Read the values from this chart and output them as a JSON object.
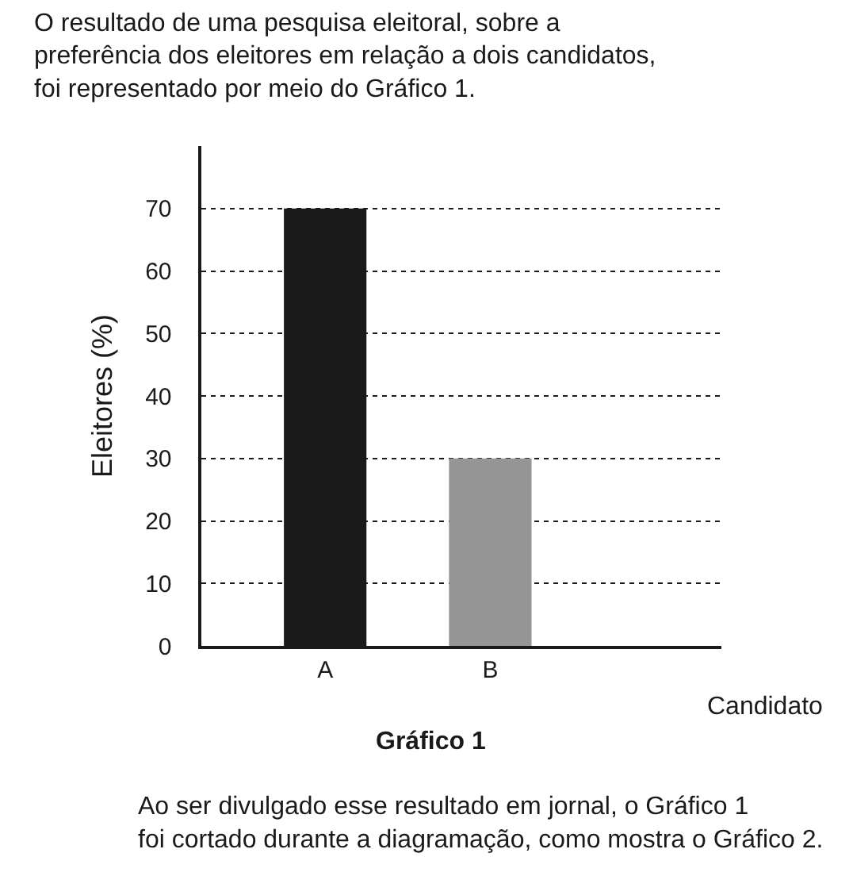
{
  "chart_data": {
    "type": "bar",
    "title": "O resultado de uma pesquisa eleitoral, sobre a\npreferência dos eleitores em relação a dois candidatos,\nfoi representado por meio do Gráfico 1.",
    "categories": [
      "A",
      "B",
      null
    ],
    "values": [
      70,
      30,
      null
    ],
    "colors": [
      "#1a1a1a",
      "#959595",
      "#959595"
    ],
    "xlabel": "Candidato",
    "ylabel": "Eleitores (%)",
    "ylim": [
      0,
      80
    ],
    "yticks": [
      0,
      10,
      20,
      30,
      40,
      50,
      60,
      70
    ],
    "grid": "y",
    "annotations": [
      "Gráfico 1",
      "Ao ser divulgado esse resultado em jornal, o Gráfico 1\nfoi cortado durante a diagramação, como mostra o Gráfico 2."
    ]
  }
}
